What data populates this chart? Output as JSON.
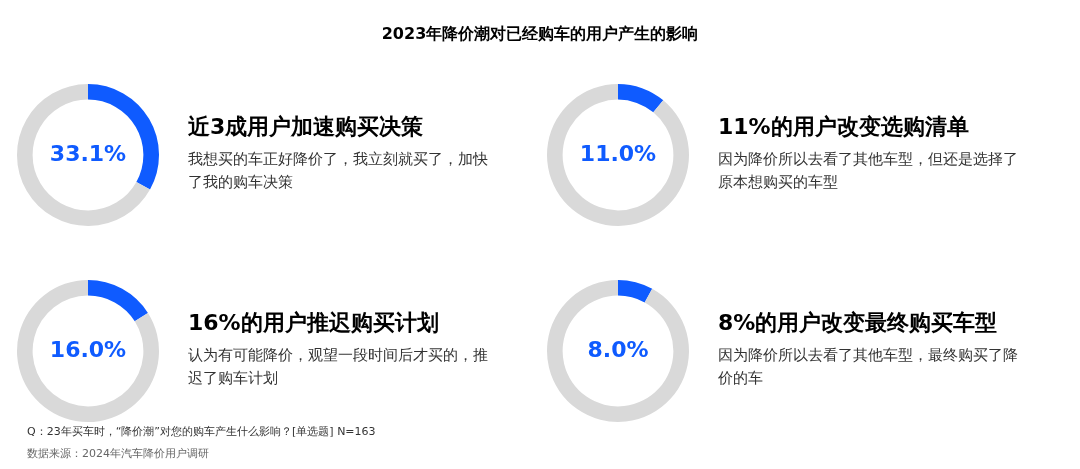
{
  "chart_data": [
    {
      "type": "other",
      "title": "2023年降价潮对已经购车的用户产生的影响",
      "annotations": [
        "Q：23年买车时，“降价潮”对您的购车产生什么影响？[单选题] N=163",
        "数据来源：2024年汽车降价用户调研"
      ]
    },
    {
      "type": "donut",
      "title": "近3成用户加速购买决策",
      "subtitle": "我想买的车正好降价了，我立刻就买了，加快了我的购车决策",
      "categories": [
        null,
        null
      ],
      "values": [
        33.1,
        66.9
      ],
      "colors": [
        "#0f5bff",
        "#d9d9d9"
      ],
      "value_labels": [
        "33.1%",
        null
      ]
    },
    {
      "type": "donut",
      "title": "11%的用户改变选购清单",
      "subtitle": "因为降价所以去看了其他车型，但还是选择了原本想购买的车型",
      "categories": [
        null,
        null
      ],
      "values": [
        11.0,
        89.0
      ],
      "colors": [
        "#0f5bff",
        "#d9d9d9"
      ],
      "value_labels": [
        "11.0%",
        null
      ]
    },
    {
      "type": "donut",
      "title": "16%的用户推迟购买计划",
      "subtitle": "认为有可能降价，观望一段时间后才买的，推迟了购车计划",
      "categories": [
        null,
        null
      ],
      "values": [
        16.0,
        84.0
      ],
      "colors": [
        "#0f5bff",
        "#d9d9d9"
      ],
      "value_labels": [
        "16.0%",
        null
      ]
    },
    {
      "type": "donut",
      "title": "8%的用户改变最终购买车型",
      "subtitle": "因为降价所以去看了其他车型，最终购买了降价的车",
      "categories": [
        null,
        null
      ],
      "values": [
        8.0,
        92.0
      ],
      "colors": [
        "#0f5bff",
        "#d9d9d9"
      ],
      "value_labels": [
        "8.0%",
        null
      ]
    }
  ]
}
